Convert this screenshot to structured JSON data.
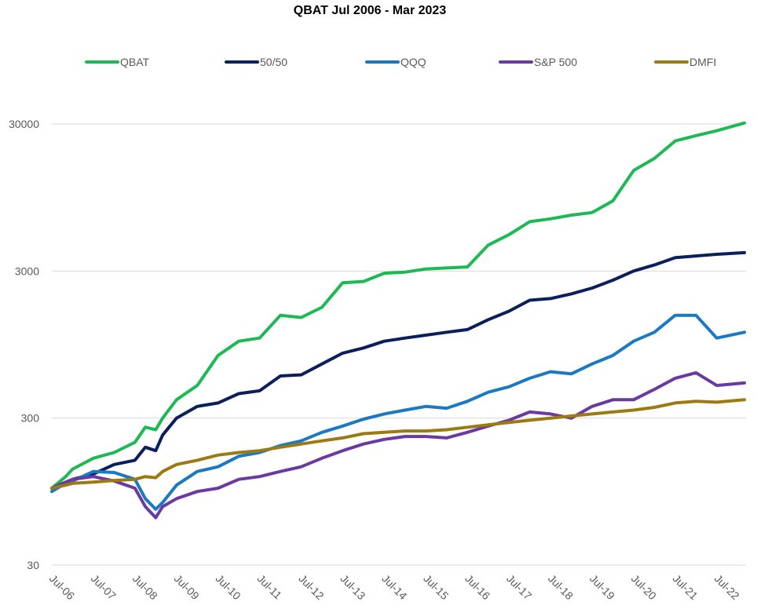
{
  "chart_data": {
    "type": "line",
    "title": "QBAT  Jul 2006 - Mar 2023",
    "xlabel": "",
    "ylabel": "",
    "y_scale": "log",
    "ylim": [
      30,
      30000
    ],
    "y_ticks": [
      30,
      300,
      3000,
      30000
    ],
    "y_tick_labels": [
      "30",
      "300",
      "3000",
      "30000"
    ],
    "x_range": [
      "2006-07",
      "2023-03"
    ],
    "x_ticks": [
      "2006-07",
      "2007-07",
      "2008-07",
      "2009-07",
      "2010-07",
      "2011-07",
      "2012-07",
      "2013-07",
      "2014-07",
      "2015-07",
      "2016-07",
      "2017-07",
      "2018-07",
      "2019-07",
      "2020-07",
      "2021-07",
      "2022-07"
    ],
    "x_tick_labels": [
      "Jul-06",
      "Jul-07",
      "Jul-08",
      "Jul-09",
      "Jul-10",
      "Jul-11",
      "Jul-12",
      "Jul-13",
      "Jul-14",
      "Jul-15",
      "Jul-16",
      "Jul-17",
      "Jul-18",
      "Jul-19",
      "Jul-20",
      "Jul-21",
      "Jul-22"
    ],
    "grid": "horizontal",
    "legend_position": "top",
    "series": [
      {
        "name": "QBAT",
        "color": "#1db954",
        "points": [
          [
            "2006-07",
            100
          ],
          [
            "2006-11",
            120
          ],
          [
            "2007-01",
            135
          ],
          [
            "2007-07",
            160
          ],
          [
            "2008-01",
            175
          ],
          [
            "2008-07",
            205
          ],
          [
            "2008-10",
            260
          ],
          [
            "2009-01",
            250
          ],
          [
            "2009-03",
            300
          ],
          [
            "2009-07",
            400
          ],
          [
            "2010-01",
            500
          ],
          [
            "2010-07",
            800
          ],
          [
            "2011-01",
            1000
          ],
          [
            "2011-07",
            1050
          ],
          [
            "2012-01",
            1500
          ],
          [
            "2012-07",
            1450
          ],
          [
            "2013-01",
            1700
          ],
          [
            "2013-07",
            2500
          ],
          [
            "2014-01",
            2550
          ],
          [
            "2014-07",
            2900
          ],
          [
            "2015-01",
            2950
          ],
          [
            "2015-07",
            3100
          ],
          [
            "2016-01",
            3150
          ],
          [
            "2016-07",
            3200
          ],
          [
            "2017-01",
            4500
          ],
          [
            "2017-07",
            5300
          ],
          [
            "2018-01",
            6500
          ],
          [
            "2018-07",
            6800
          ],
          [
            "2019-01",
            7200
          ],
          [
            "2019-07",
            7500
          ],
          [
            "2020-01",
            9000
          ],
          [
            "2020-07",
            14500
          ],
          [
            "2021-01",
            17500
          ],
          [
            "2021-07",
            23000
          ],
          [
            "2022-01",
            25000
          ],
          [
            "2022-07",
            27000
          ],
          [
            "2023-03",
            30500
          ]
        ]
      },
      {
        "name": "50/50",
        "color": "#0b1f5c",
        "points": [
          [
            "2006-07",
            100
          ],
          [
            "2006-11",
            110
          ],
          [
            "2007-01",
            115
          ],
          [
            "2007-07",
            125
          ],
          [
            "2008-01",
            145
          ],
          [
            "2008-07",
            155
          ],
          [
            "2008-10",
            190
          ],
          [
            "2009-01",
            180
          ],
          [
            "2009-03",
            230
          ],
          [
            "2009-07",
            300
          ],
          [
            "2010-01",
            360
          ],
          [
            "2010-07",
            380
          ],
          [
            "2011-01",
            440
          ],
          [
            "2011-07",
            460
          ],
          [
            "2012-01",
            580
          ],
          [
            "2012-07",
            590
          ],
          [
            "2013-01",
            700
          ],
          [
            "2013-07",
            830
          ],
          [
            "2014-01",
            900
          ],
          [
            "2014-07",
            1000
          ],
          [
            "2015-01",
            1050
          ],
          [
            "2015-07",
            1100
          ],
          [
            "2016-01",
            1150
          ],
          [
            "2016-07",
            1200
          ],
          [
            "2017-01",
            1400
          ],
          [
            "2017-07",
            1600
          ],
          [
            "2018-01",
            1900
          ],
          [
            "2018-07",
            1950
          ],
          [
            "2019-01",
            2100
          ],
          [
            "2019-07",
            2300
          ],
          [
            "2020-01",
            2600
          ],
          [
            "2020-07",
            3000
          ],
          [
            "2021-01",
            3300
          ],
          [
            "2021-07",
            3700
          ],
          [
            "2022-01",
            3800
          ],
          [
            "2022-07",
            3900
          ],
          [
            "2023-03",
            4000
          ]
        ]
      },
      {
        "name": "QQQ",
        "color": "#1b78c2",
        "points": [
          [
            "2006-07",
            95
          ],
          [
            "2006-11",
            108
          ],
          [
            "2007-01",
            112
          ],
          [
            "2007-07",
            130
          ],
          [
            "2008-01",
            128
          ],
          [
            "2008-07",
            115
          ],
          [
            "2008-10",
            85
          ],
          [
            "2009-01",
            72
          ],
          [
            "2009-03",
            80
          ],
          [
            "2009-07",
            105
          ],
          [
            "2010-01",
            130
          ],
          [
            "2010-07",
            140
          ],
          [
            "2011-01",
            165
          ],
          [
            "2011-07",
            175
          ],
          [
            "2012-01",
            195
          ],
          [
            "2012-07",
            210
          ],
          [
            "2013-01",
            240
          ],
          [
            "2013-07",
            265
          ],
          [
            "2014-01",
            295
          ],
          [
            "2014-07",
            320
          ],
          [
            "2015-01",
            340
          ],
          [
            "2015-07",
            360
          ],
          [
            "2016-01",
            350
          ],
          [
            "2016-07",
            390
          ],
          [
            "2017-01",
            450
          ],
          [
            "2017-07",
            490
          ],
          [
            "2018-01",
            560
          ],
          [
            "2018-07",
            620
          ],
          [
            "2019-01",
            600
          ],
          [
            "2019-07",
            700
          ],
          [
            "2020-01",
            800
          ],
          [
            "2020-07",
            1000
          ],
          [
            "2021-01",
            1150
          ],
          [
            "2021-07",
            1500
          ],
          [
            "2022-01",
            1500
          ],
          [
            "2022-07",
            1050
          ],
          [
            "2023-03",
            1150
          ]
        ]
      },
      {
        "name": "S&P 500",
        "color": "#6b3aa0",
        "points": [
          [
            "2006-07",
            100
          ],
          [
            "2006-11",
            110
          ],
          [
            "2007-01",
            115
          ],
          [
            "2007-07",
            120
          ],
          [
            "2008-01",
            112
          ],
          [
            "2008-07",
            100
          ],
          [
            "2008-10",
            75
          ],
          [
            "2009-01",
            63
          ],
          [
            "2009-03",
            75
          ],
          [
            "2009-07",
            85
          ],
          [
            "2010-01",
            95
          ],
          [
            "2010-07",
            100
          ],
          [
            "2011-01",
            115
          ],
          [
            "2011-07",
            120
          ],
          [
            "2012-01",
            130
          ],
          [
            "2012-07",
            140
          ],
          [
            "2013-01",
            160
          ],
          [
            "2013-07",
            180
          ],
          [
            "2014-01",
            200
          ],
          [
            "2014-07",
            215
          ],
          [
            "2015-01",
            225
          ],
          [
            "2015-07",
            225
          ],
          [
            "2016-01",
            220
          ],
          [
            "2016-07",
            240
          ],
          [
            "2017-01",
            265
          ],
          [
            "2017-07",
            290
          ],
          [
            "2018-01",
            330
          ],
          [
            "2018-07",
            320
          ],
          [
            "2019-01",
            300
          ],
          [
            "2019-07",
            360
          ],
          [
            "2020-01",
            400
          ],
          [
            "2020-07",
            400
          ],
          [
            "2021-01",
            470
          ],
          [
            "2021-07",
            560
          ],
          [
            "2022-01",
            610
          ],
          [
            "2022-07",
            500
          ],
          [
            "2023-03",
            520
          ]
        ]
      },
      {
        "name": "DMFI",
        "color": "#9c7a12",
        "points": [
          [
            "2006-07",
            100
          ],
          [
            "2006-11",
            105
          ],
          [
            "2007-01",
            108
          ],
          [
            "2007-07",
            110
          ],
          [
            "2008-01",
            113
          ],
          [
            "2008-07",
            115
          ],
          [
            "2008-10",
            120
          ],
          [
            "2009-01",
            118
          ],
          [
            "2009-03",
            130
          ],
          [
            "2009-07",
            145
          ],
          [
            "2010-01",
            155
          ],
          [
            "2010-07",
            168
          ],
          [
            "2011-01",
            175
          ],
          [
            "2011-07",
            180
          ],
          [
            "2012-01",
            190
          ],
          [
            "2012-07",
            200
          ],
          [
            "2013-01",
            210
          ],
          [
            "2013-07",
            220
          ],
          [
            "2014-01",
            235
          ],
          [
            "2014-07",
            240
          ],
          [
            "2015-01",
            245
          ],
          [
            "2015-07",
            245
          ],
          [
            "2016-01",
            250
          ],
          [
            "2016-07",
            260
          ],
          [
            "2017-01",
            270
          ],
          [
            "2017-07",
            280
          ],
          [
            "2018-01",
            290
          ],
          [
            "2018-07",
            300
          ],
          [
            "2019-01",
            310
          ],
          [
            "2019-07",
            320
          ],
          [
            "2020-01",
            330
          ],
          [
            "2020-07",
            340
          ],
          [
            "2021-01",
            355
          ],
          [
            "2021-07",
            380
          ],
          [
            "2022-01",
            390
          ],
          [
            "2022-07",
            385
          ],
          [
            "2023-03",
            400
          ]
        ]
      }
    ]
  }
}
